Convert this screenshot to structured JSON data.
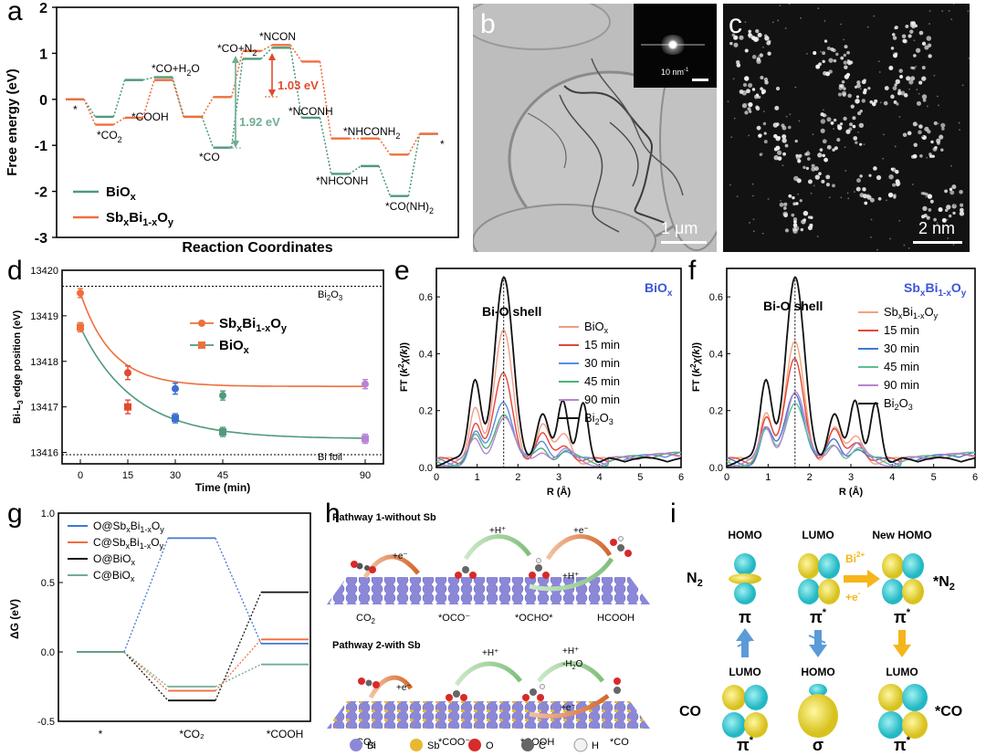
{
  "panel_labels": {
    "a": "a",
    "b": "b",
    "c": "c",
    "d": "d",
    "e": "e",
    "f": "f",
    "g": "g",
    "h": "h",
    "i": "i"
  },
  "colors": {
    "bio": "#4f9a7a",
    "sb": "#ef6f3c",
    "accent_green": "#6fae93",
    "accent_red": "#e24a2e",
    "o_sb": "#3f78d4",
    "c_sb": "#ef6f3c",
    "o_bio": "#111111",
    "c_bio": "#6fae93",
    "e_bio": "#3a55d8",
    "e_sb": "#3a55d8",
    "cyan": "#3ed0d8",
    "yellow": "#f2de36",
    "arrow_blue": "#5b9bd8",
    "arrow_orange": "#f5b51b"
  },
  "chart_data": [
    {
      "id": "a",
      "type": "line",
      "title": "",
      "xlabel": "Reaction Coordinates",
      "ylabel": "Free energy (eV)",
      "ylim": [
        -3,
        2
      ],
      "yticks": [
        2,
        1,
        0,
        -1,
        -2,
        -3
      ],
      "series": [
        {
          "name": "BiOₓ",
          "label_main": "BiO",
          "label_sub": "x",
          "style": "solid-steps+dotted",
          "levels": [
            0,
            -0.38,
            0.42,
            0.48,
            -0.38,
            -1.05,
            0.88,
            1.12,
            -0.4,
            -1.62,
            -1.45,
            -2.1,
            -0.75
          ]
        },
        {
          "name": "SbₓBi₁₋ₓOᵧ",
          "style": "solid-steps+dotted",
          "levels": [
            0,
            -0.55,
            -0.4,
            0.42,
            -0.38,
            0.05,
            1.05,
            1.18,
            0.82,
            -0.85,
            -0.85,
            -1.2,
            -0.75
          ]
        }
      ],
      "annotations": {
        "star1": "*",
        "co2": "*CO",
        "co2_sub": "2",
        "cooh": "*COOH",
        "coh2o": "*CO+H",
        "coh2o_sub": "2",
        "coh2o_end": "O",
        "co": "*CO",
        "con2": "*CO+N",
        "con2_sub": "2",
        "ncon": "*NCON",
        "nconh": "*NCONH",
        "nhconh": "*NHCONH",
        "nhconh2": "*NHCONH",
        "nhconh2_sub": "2",
        "conh22": "*CO(NH)",
        "conh22_sub": "2",
        "star2": "*",
        "e1": "1.03 eV",
        "e2": "1.92 eV"
      }
    },
    {
      "id": "d",
      "type": "scatter",
      "xlabel": "Time (min)",
      "ylabel": "Bi-L₃ edge position (eV)",
      "ylabel_main": "Bi-L",
      "ylabel_sub": "3",
      "ylabel_end": " edge position (eV)",
      "ylim": [
        13415.75,
        13420
      ],
      "yticks": [
        13420,
        13419,
        13418,
        13417,
        13416
      ],
      "xticks": [
        0,
        15,
        30,
        45,
        90
      ],
      "refs": [
        {
          "name": "Bi₂O₃",
          "value": 13419.65,
          "main": "Bi",
          "sub": "2",
          "end": "O",
          "sub2": "3"
        },
        {
          "name": "Bi foil",
          "value": 13415.95
        }
      ],
      "series": [
        {
          "name": "SbₓBi₁₋ₓOᵧ",
          "x": [
            0,
            15,
            30,
            45,
            90
          ],
          "y": [
            13419.5,
            13417.75,
            13417.4,
            13417.25,
            13417.5
          ],
          "err": [
            0.1,
            0.15,
            0.12,
            0.1,
            0.1
          ]
        },
        {
          "name": "BiOₓ",
          "x": [
            0,
            15,
            30,
            45,
            90
          ],
          "y": [
            13418.75,
            13417.0,
            13416.75,
            13416.45,
            13416.3
          ],
          "err": [
            0.1,
            0.15,
            0.1,
            0.1,
            0.1
          ]
        }
      ],
      "legend": [
        {
          "main": "Sb",
          "s1": "x",
          "m2": "Bi",
          "s2": "1-x",
          "m3": "O",
          "s3": "y"
        },
        {
          "main": "BiO",
          "s1": "x"
        }
      ]
    },
    {
      "id": "e",
      "type": "line",
      "title": "BiOₓ",
      "title_main": "BiO",
      "title_sub": "x",
      "xlabel": "R (Å)",
      "ylabel": "FT (k²χ(k))",
      "xlim": [
        0,
        6
      ],
      "ylim": [
        0,
        0.7
      ],
      "yticks": [
        0,
        0.2,
        0.4,
        0.6
      ],
      "xticks": [
        0,
        1,
        2,
        3,
        4,
        5,
        6
      ],
      "annotation": "Bi-O shell",
      "series": [
        {
          "name": "BiOₓ",
          "peak": 0.45
        },
        {
          "name": "15 min",
          "peak": 0.31
        },
        {
          "name": "30 min",
          "peak": 0.22
        },
        {
          "name": "45 min",
          "peak": 0.18
        },
        {
          "name": "90 min",
          "peak": 0.16
        },
        {
          "name": "Bi₂O₃",
          "peak": 0.64
        }
      ]
    },
    {
      "id": "f",
      "type": "line",
      "title": "SbₓBi₁₋ₓOᵧ",
      "xlabel": "R (Å)",
      "ylabel": "FT (k²χ(k))",
      "xlim": [
        0,
        6
      ],
      "ylim": [
        0,
        0.7
      ],
      "yticks": [
        0,
        0.2,
        0.4,
        0.6
      ],
      "xticks": [
        0,
        1,
        2,
        3,
        4,
        5,
        6
      ],
      "annotation": "Bi-O shell",
      "series": [
        {
          "name": "SbₓBi₁₋ₓOᵧ",
          "peak": 0.41
        },
        {
          "name": "15 min",
          "peak": 0.36
        },
        {
          "name": "30 min",
          "peak": 0.25
        },
        {
          "name": "45 min",
          "peak": 0.22
        },
        {
          "name": "90 min",
          "peak": 0.25
        },
        {
          "name": "Bi₂O₃",
          "peak": 0.64
        }
      ]
    },
    {
      "id": "g",
      "type": "line",
      "xlabel": "",
      "ylabel": "ΔG (eV)",
      "ylim": [
        -0.5,
        1.0
      ],
      "yticks": [
        1.0,
        0.5,
        0.0,
        -0.5
      ],
      "categories": [
        "*",
        "*CO₂",
        "*COOH"
      ],
      "series": [
        {
          "name": "O@SbₓBi₁₋ₓOᵧ",
          "values": [
            0,
            0.82,
            0.06
          ]
        },
        {
          "name": "C@SbₓBi₁₋ₓOᵧ",
          "values": [
            0,
            -0.28,
            0.09
          ]
        },
        {
          "name": "O@BiOₓ",
          "values": [
            0,
            -0.35,
            0.43
          ]
        },
        {
          "name": "C@BiOₓ",
          "values": [
            0,
            -0.25,
            -0.09
          ]
        }
      ]
    }
  ],
  "legend_a": [
    {
      "main": "BiO",
      "sub": "x"
    },
    {
      "main": "Sb",
      "sub": "x",
      "m2": "Bi",
      "s2": "1-x",
      "m3": "O",
      "s3": "y"
    }
  ],
  "legend_ef": {
    "e": [
      "BiO",
      "15 min",
      "30 min",
      "45 min",
      "90 min",
      "Bi"
    ],
    "e_subs": [
      "x",
      "",
      "",
      "",
      "",
      "2"
    ],
    "f": [
      "Sb",
      "15 min",
      "30 min",
      "45 min",
      "90 min",
      "Bi"
    ]
  },
  "ef_sub": {
    "x": "x",
    "bi2": "2",
    "o3": "3",
    "o": "O",
    "bi": "Bi",
    "oy": "O",
    "y": "y",
    "onex": "1-x"
  },
  "legend_g": [
    {
      "pre": "O@Sb",
      "s1": "x",
      "m2": "Bi",
      "s2": "1-x",
      "m3": "O",
      "s3": "y"
    },
    {
      "pre": "C@Sb",
      "s1": "x",
      "m2": "Bi",
      "s2": "1-x",
      "m3": "O",
      "s3": "y"
    },
    {
      "pre": "O@BiO",
      "s1": "x"
    },
    {
      "pre": "C@BiO",
      "s1": "x"
    }
  ],
  "micro_b": {
    "scale": "1 μm",
    "inset_scale": "10 nm",
    "inset_scale_sup": "-1"
  },
  "micro_c": {
    "scale": "2 nm"
  },
  "panel_h": {
    "pathway1": "Pathway 1-without Sb",
    "pathway2": "Pathway 2-with Sb",
    "p1_labels": [
      "CO",
      "*OCO⁻",
      "*OCHO*",
      "HCOOH"
    ],
    "p1_sub": "2",
    "p2_labels": [
      "CO",
      "*COO⁻",
      "*COOH",
      "*CO"
    ],
    "p2_sub": "2",
    "p1_arrows": [
      "+H⁺",
      "+e⁻",
      "+e⁻",
      "+H⁺"
    ],
    "p2_arrows": [
      "+H⁺",
      "+H⁺",
      "-H",
      "+e⁻",
      "+e⁻"
    ],
    "p2_h2o_sub": "2",
    "p2_h2o_end": "O",
    "legend": [
      "Bi",
      "Sb",
      "O",
      "C",
      "H"
    ]
  },
  "panel_i": {
    "n2": "N",
    "n2_sub": "2",
    "co": "CO",
    "homo": "HOMO",
    "lumo": "LUMO",
    "new_homo": "New HOMO",
    "lumo2": "LUMO",
    "homo2": "HOMO",
    "lumo3": "LUMO",
    "pi": "π",
    "pi_star": "π",
    "star": "*",
    "sigma": "σ",
    "bi": "Bi",
    "bi_sup": "2+",
    "e": "+e",
    "e_sup": "-",
    "n2_ads": "*N",
    "n2_ads_sub": "2",
    "co_ads": "*CO"
  }
}
